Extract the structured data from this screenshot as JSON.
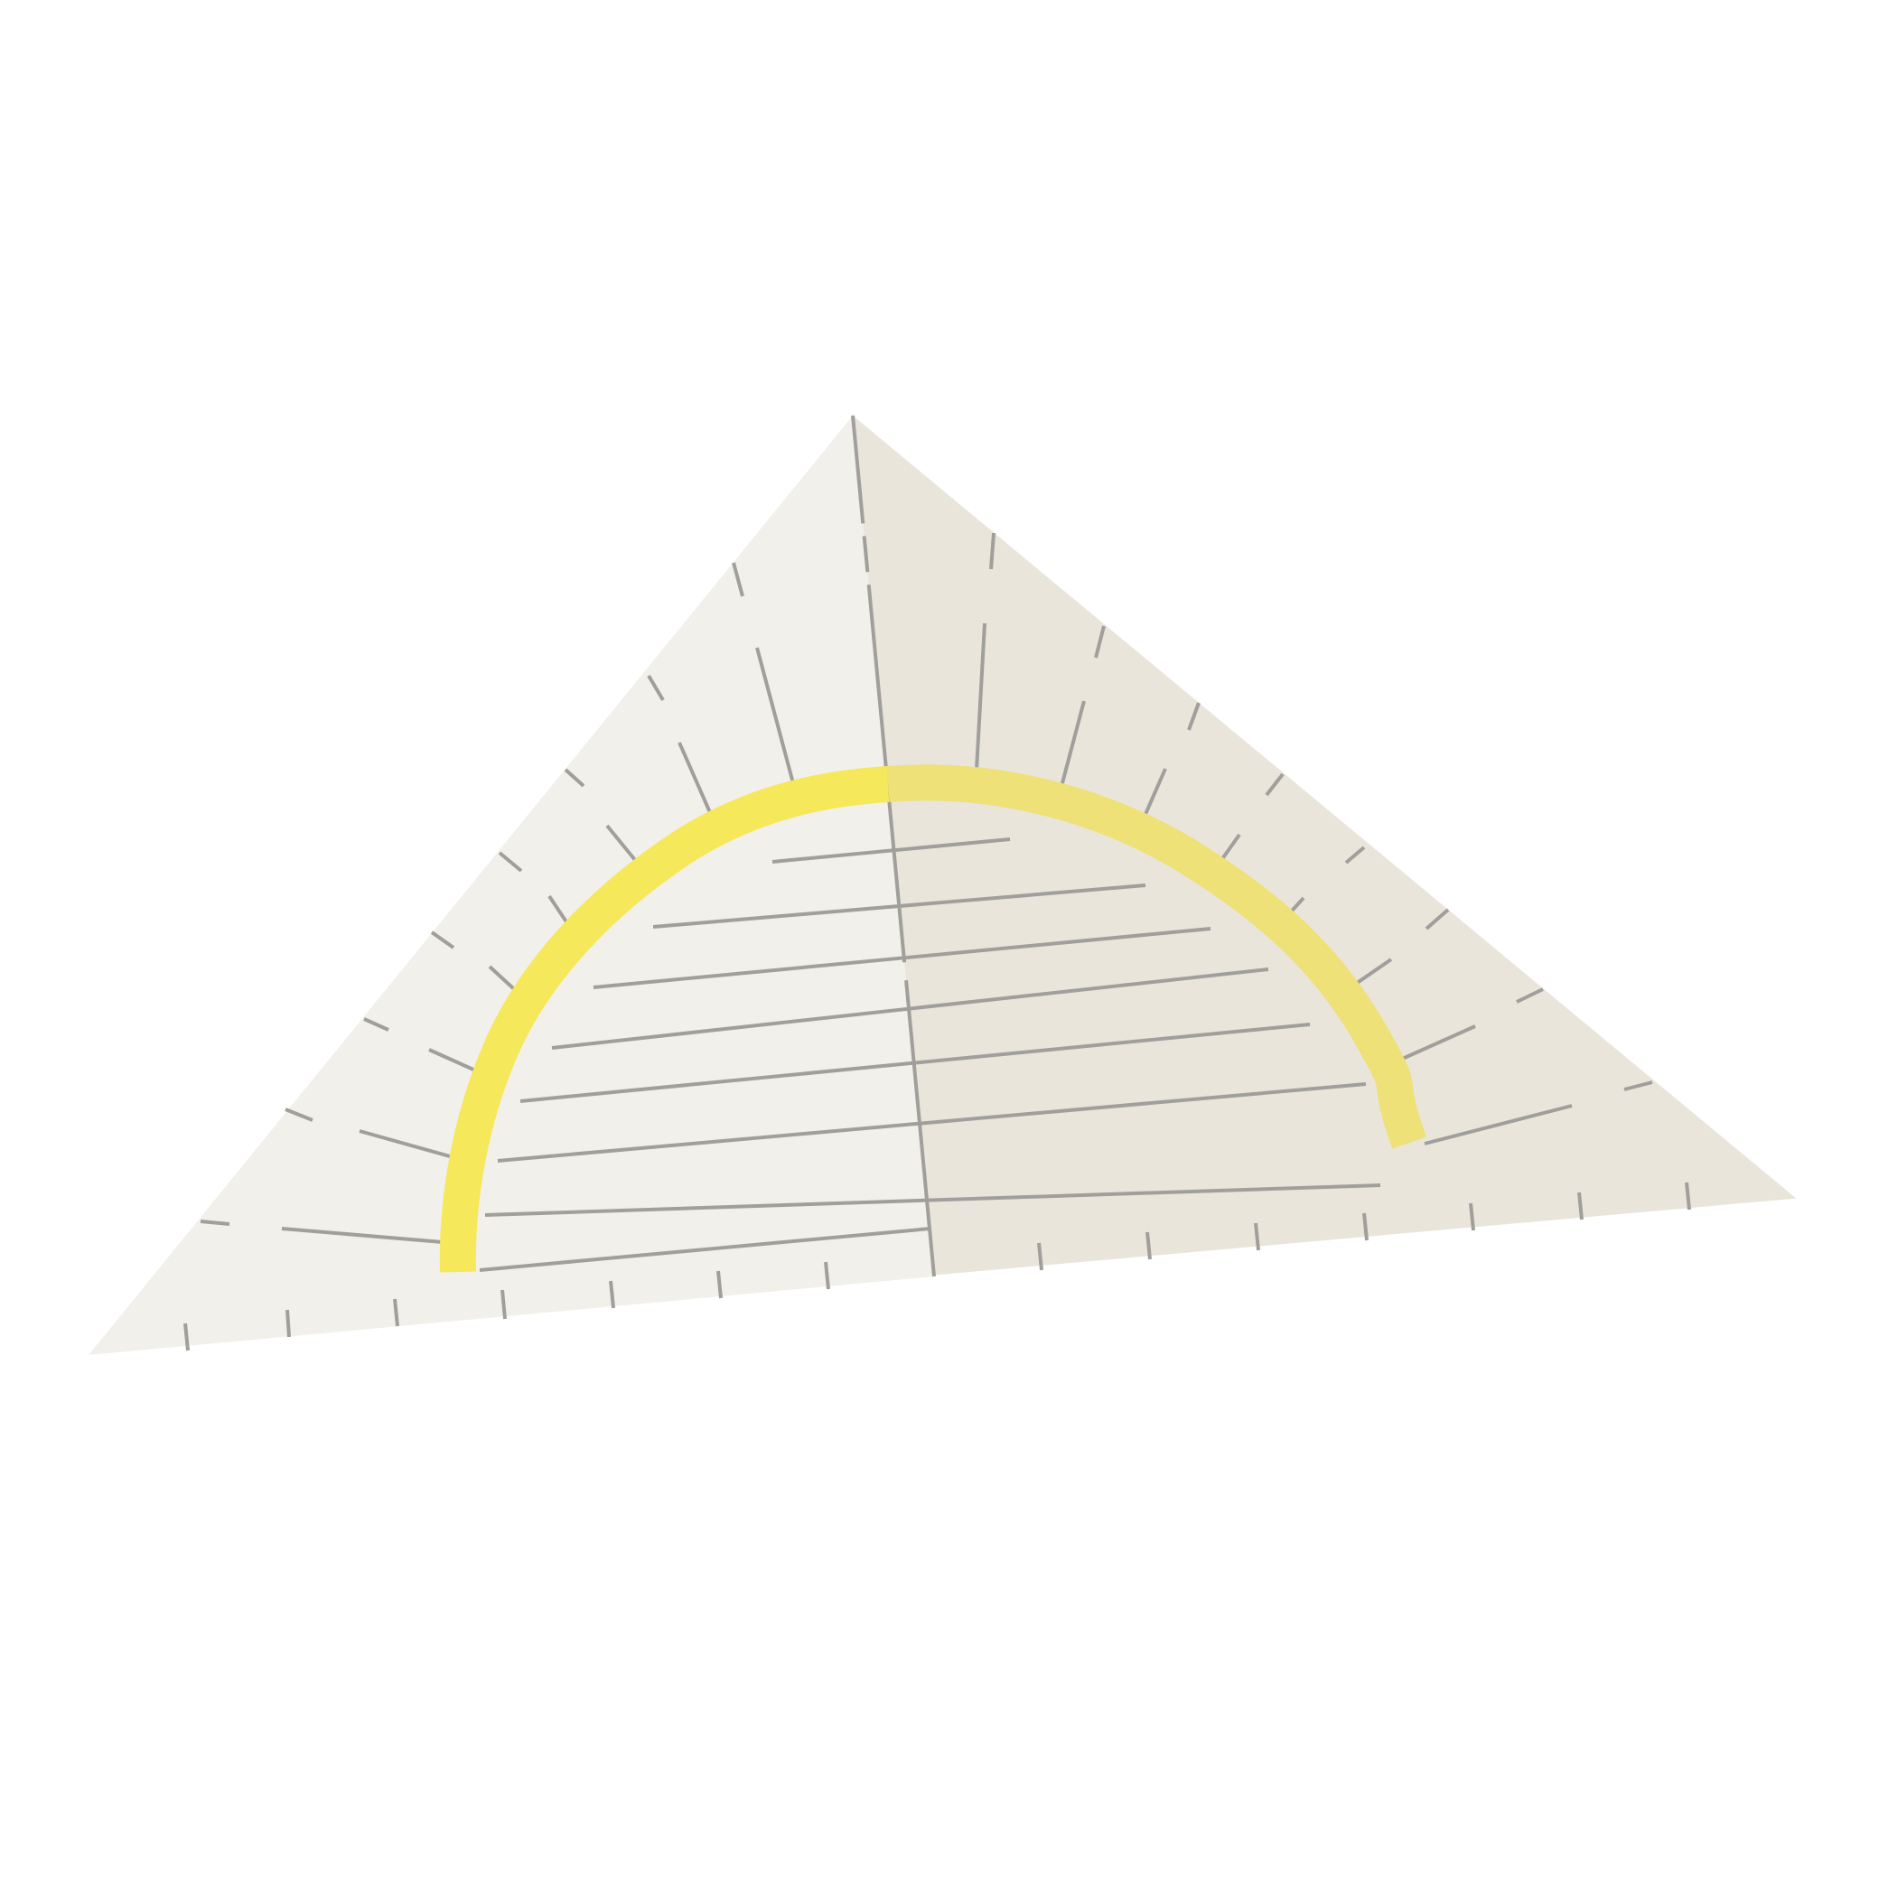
{
  "illustration": {
    "subject": "geodreieck-set-square-icon",
    "colors": {
      "background": "#ffffff",
      "left_face": "#f2f0ea",
      "right_face": "#eae5db",
      "tick_marks": "#a09f9c",
      "protractor_arc_left": "#f5e85a",
      "protractor_arc_right": "#ede177",
      "edge_highlight": "#ffffff"
    }
  }
}
